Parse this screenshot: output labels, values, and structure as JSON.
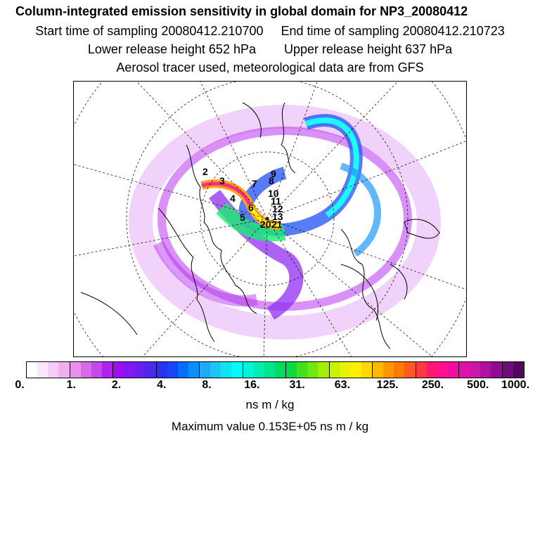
{
  "header": {
    "title": "Column-integrated emission sensitivity in global domain for NP3_20080412",
    "start": "Start time of sampling 20080412.210700",
    "end": "End time of sampling 20080412.210723",
    "lower": "Lower release height  652 hPa",
    "upper": "Upper release height  637 hPa",
    "tracer": "Aerosol tracer used, meteorological data are from GFS"
  },
  "colorbar": {
    "ticks": [
      "0.",
      "1.",
      "2.",
      "4.",
      "8.",
      "16.",
      "31.",
      "63.",
      "125.",
      "250.",
      "500.",
      "1000."
    ],
    "colors": [
      "#ffffff",
      "#fbe6fb",
      "#f6cdf6",
      "#f0b0f0",
      "#e790ec",
      "#d76ae6",
      "#c448e8",
      "#b020ee",
      "#9a10f0",
      "#8418f4",
      "#6a20f0",
      "#4a28ee",
      "#2c30f0",
      "#1448f4",
      "#0070f8",
      "#0a90f8",
      "#1aacf6",
      "#20c4f4",
      "#10e4f0",
      "#00fcfc",
      "#00f4d8",
      "#00ecb0",
      "#00e48a",
      "#00dc60",
      "#10d840",
      "#40e020",
      "#70e810",
      "#a0f000",
      "#c8f400",
      "#e8f400",
      "#fff000",
      "#ffd800",
      "#ffb800",
      "#ff9800",
      "#ff7800",
      "#ff5820",
      "#ff3848",
      "#ff1870",
      "#ff1090",
      "#f010a0",
      "#e010a8",
      "#c818a8",
      "#b010a0",
      "#900c90",
      "#700c78",
      "#500a58"
    ],
    "unit": "ns m / kg",
    "max_text": "Maximum value  0.153E+05 ns m / kg"
  },
  "map": {
    "track_labels": [
      "2",
      "3",
      "4",
      "5",
      "6",
      "7",
      "8",
      "9",
      "10",
      "11",
      "12",
      "13",
      "20",
      "21"
    ]
  }
}
